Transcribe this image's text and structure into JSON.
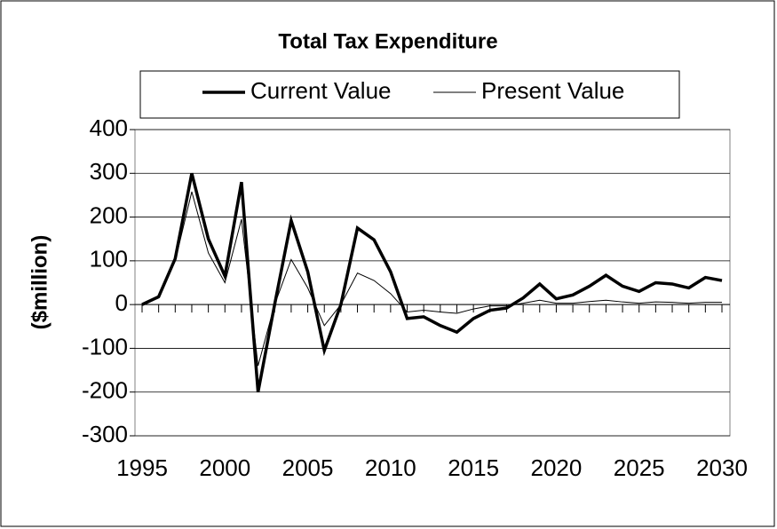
{
  "chart_data": {
    "type": "line",
    "title": "Total Tax Expenditure",
    "ylabel": "($million)",
    "x": [
      1995,
      1996,
      1997,
      1998,
      1999,
      2000,
      2001,
      2002,
      2003,
      2004,
      2005,
      2006,
      2007,
      2008,
      2009,
      2010,
      2011,
      2012,
      2013,
      2014,
      2015,
      2016,
      2017,
      2018,
      2019,
      2020,
      2021,
      2022,
      2023,
      2024,
      2025,
      2026,
      2027,
      2028,
      2029,
      2030
    ],
    "series": [
      {
        "name": "Current Value",
        "color": "#000000",
        "width": 3.5,
        "values": [
          0,
          18,
          105,
          300,
          150,
          65,
          280,
          -200,
          0,
          192,
          75,
          -105,
          0,
          175,
          148,
          75,
          -32,
          -28,
          -48,
          -63,
          -32,
          -13,
          -8,
          15,
          47,
          13,
          22,
          42,
          67,
          42,
          30,
          50,
          47,
          38,
          62,
          55
        ]
      },
      {
        "name": "Present Value",
        "color": "#000000",
        "width": 1,
        "values": [
          0,
          15,
          100,
          258,
          118,
          50,
          195,
          -140,
          0,
          103,
          38,
          -48,
          0,
          72,
          55,
          25,
          -17,
          -13,
          -17,
          -20,
          -10,
          -3,
          -3,
          3,
          10,
          3,
          3,
          7,
          10,
          6,
          3,
          6,
          5,
          3,
          5,
          5
        ]
      }
    ],
    "xlim": [
      1995,
      2030
    ],
    "xticks": [
      1995,
      2000,
      2005,
      2010,
      2015,
      2020,
      2025,
      2030
    ],
    "ylim": [
      -300,
      400
    ],
    "yticks": [
      -300,
      -200,
      -100,
      0,
      100,
      200,
      300,
      400
    ],
    "grid": true,
    "legend": "top"
  }
}
